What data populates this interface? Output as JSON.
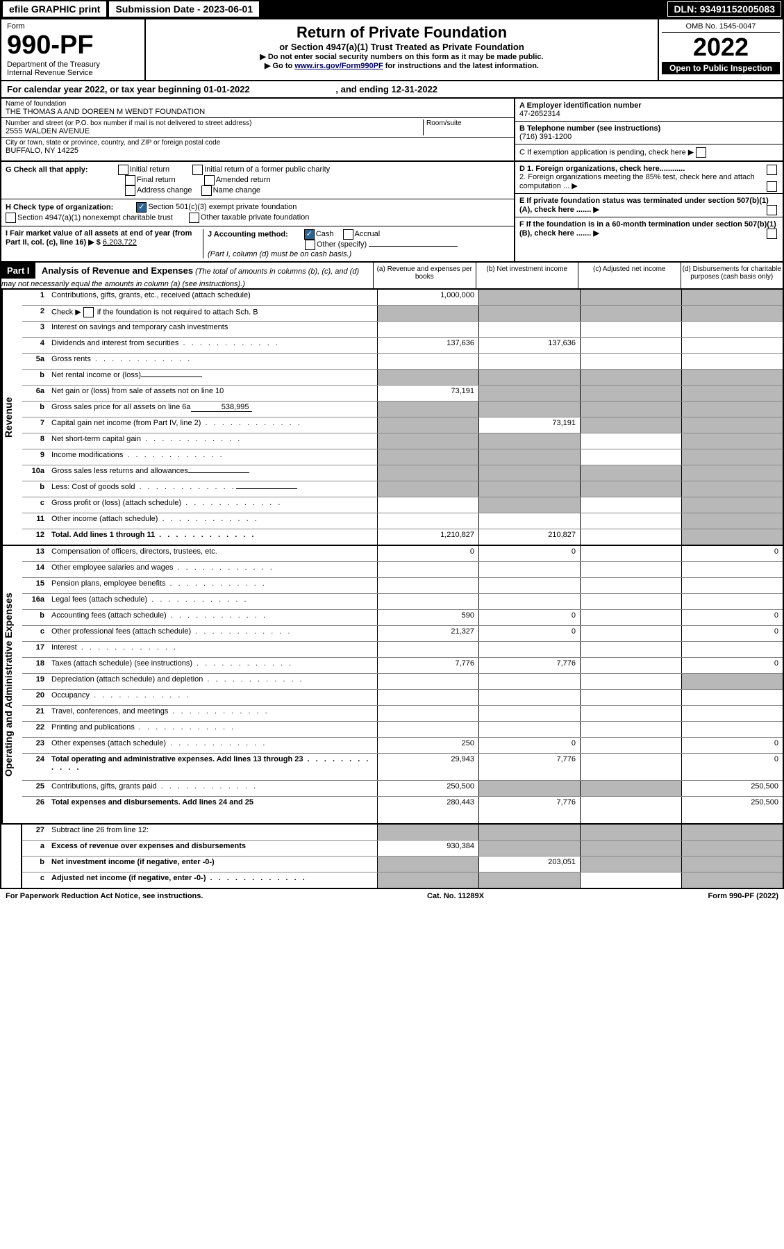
{
  "topbar": {
    "efile": "efile GRAPHIC print",
    "submission_label": "Submission Date - ",
    "submission_date": "2023-06-01",
    "dln_label": "DLN: ",
    "dln": "93491152005083"
  },
  "header": {
    "form_label": "Form",
    "form_number": "990-PF",
    "dept": "Department of the Treasury",
    "irs": "Internal Revenue Service",
    "title": "Return of Private Foundation",
    "subtitle": "or Section 4947(a)(1) Trust Treated as Private Foundation",
    "line1": "▶ Do not enter social security numbers on this form as it may be made public.",
    "line2_pre": "▶ Go to ",
    "line2_link": "www.irs.gov/Form990PF",
    "line2_post": " for instructions and the latest information.",
    "omb": "OMB No. 1545-0047",
    "year": "2022",
    "open": "Open to Public Inspection"
  },
  "calendar": {
    "text_pre": "For calendar year 2022, or tax year beginning ",
    "begin": "01-01-2022",
    "text_mid": " , and ending ",
    "end": "12-31-2022"
  },
  "info": {
    "name_lbl": "Name of foundation",
    "name": "THE THOMAS A AND DOREEN M WENDT FOUNDATION",
    "addr_lbl": "Number and street (or P.O. box number if mail is not delivered to street address)",
    "addr": "2555 WALDEN AVENUE",
    "room_lbl": "Room/suite",
    "room": "",
    "city_lbl": "City or town, state or province, country, and ZIP or foreign postal code",
    "city": "BUFFALO, NY  14225",
    "a_lbl": "A Employer identification number",
    "a_val": "47-2652314",
    "b_lbl": "B Telephone number (see instructions)",
    "b_val": "(716) 391-1200",
    "c_lbl": "C If exemption application is pending, check here ▶"
  },
  "checks": {
    "g_lbl": "G Check all that apply:",
    "g_opts": [
      "Initial return",
      "Initial return of a former public charity",
      "Final return",
      "Amended return",
      "Address change",
      "Name change"
    ],
    "h_lbl": "H Check type of organization:",
    "h1": "Section 501(c)(3) exempt private foundation",
    "h2": "Section 4947(a)(1) nonexempt charitable trust",
    "h3": "Other taxable private foundation",
    "i_lbl": "I Fair market value of all assets at end of year (from Part II, col. (c), line 16) ▶ $",
    "i_val": "6,203,722",
    "j_lbl": "J Accounting method:",
    "j_cash": "Cash",
    "j_accrual": "Accrual",
    "j_other": "Other (specify)",
    "j_note": "(Part I, column (d) must be on cash basis.)",
    "d1": "D 1. Foreign organizations, check here............",
    "d2": "2. Foreign organizations meeting the 85% test, check here and attach computation ...  ▶",
    "e": "E  If private foundation status was terminated under section 507(b)(1)(A), check here .......  ▶",
    "f": "F  If the foundation is in a 60-month termination under section 507(b)(1)(B), check here .......  ▶"
  },
  "part1": {
    "label": "Part I",
    "title": "Analysis of Revenue and Expenses",
    "note": " (The total of amounts in columns (b), (c), and (d) may not necessarily equal the amounts in column (a) (see instructions).)",
    "col_a": "(a)  Revenue and expenses per books",
    "col_b": "(b)  Net investment income",
    "col_c": "(c)  Adjusted net income",
    "col_d": "(d)  Disbursements for charitable purposes (cash basis only)"
  },
  "revenue_label": "Revenue",
  "expenses_label": "Operating and Administrative Expenses",
  "rows": {
    "r1": {
      "n": "1",
      "desc": "Contributions, gifts, grants, etc., received (attach schedule)",
      "a": "1,000,000",
      "b": "",
      "c": "",
      "d": "",
      "ga": false,
      "gb": true,
      "gc": true,
      "gd": true
    },
    "r2": {
      "n": "2",
      "desc_pre": "Check ▶ ",
      "desc_post": " if the foundation is not required to attach Sch. B",
      "a": "",
      "b": "",
      "c": "",
      "d": "",
      "ga": true,
      "gb": true,
      "gc": true,
      "gd": true,
      "chk": true,
      "dotted": true
    },
    "r3": {
      "n": "3",
      "desc": "Interest on savings and temporary cash investments",
      "a": "",
      "b": "",
      "c": "",
      "d": ""
    },
    "r4": {
      "n": "4",
      "desc": "Dividends and interest from securities",
      "a": "137,636",
      "b": "137,636",
      "c": "",
      "d": "",
      "dotted": true
    },
    "r5a": {
      "n": "5a",
      "desc": "Gross rents",
      "a": "",
      "b": "",
      "c": "",
      "d": "",
      "dotted": true
    },
    "r5b": {
      "n": "b",
      "desc": "Net rental income or (loss)",
      "a": "",
      "b": "",
      "c": "",
      "d": "",
      "ga": true,
      "gb": true,
      "gc": true,
      "gd": true,
      "inline": ""
    },
    "r6a": {
      "n": "6a",
      "desc": "Net gain or (loss) from sale of assets not on line 10",
      "a": "73,191",
      "b": "",
      "c": "",
      "d": "",
      "gb": true,
      "gc": true,
      "gd": true
    },
    "r6b": {
      "n": "b",
      "desc_pre": "Gross sales price for all assets on line 6a",
      "inline": "538,995",
      "a": "",
      "b": "",
      "c": "",
      "d": "",
      "ga": true,
      "gb": true,
      "gc": true,
      "gd": true
    },
    "r7": {
      "n": "7",
      "desc": "Capital gain net income (from Part IV, line 2)",
      "a": "",
      "b": "73,191",
      "c": "",
      "d": "",
      "ga": true,
      "gc": true,
      "gd": true,
      "dotted": true
    },
    "r8": {
      "n": "8",
      "desc": "Net short-term capital gain",
      "a": "",
      "b": "",
      "c": "",
      "d": "",
      "ga": true,
      "gb": true,
      "gd": true,
      "dotted": true
    },
    "r9": {
      "n": "9",
      "desc": "Income modifications",
      "a": "",
      "b": "",
      "c": "",
      "d": "",
      "ga": true,
      "gb": true,
      "gd": true,
      "dotted": true
    },
    "r10a": {
      "n": "10a",
      "desc": "Gross sales less returns and allowances",
      "inline": "",
      "a": "",
      "b": "",
      "c": "",
      "d": "",
      "ga": true,
      "gb": true,
      "gc": true,
      "gd": true
    },
    "r10b": {
      "n": "b",
      "desc": "Less: Cost of goods sold",
      "inline": "",
      "a": "",
      "b": "",
      "c": "",
      "d": "",
      "ga": true,
      "gb": true,
      "gc": true,
      "gd": true,
      "dotted": true
    },
    "r10c": {
      "n": "c",
      "desc": "Gross profit or (loss) (attach schedule)",
      "a": "",
      "b": "",
      "c": "",
      "d": "",
      "gb": true,
      "gd": true,
      "dotted": true
    },
    "r11": {
      "n": "11",
      "desc": "Other income (attach schedule)",
      "a": "",
      "b": "",
      "c": "",
      "d": "",
      "gd": true,
      "dotted": true
    },
    "r12": {
      "n": "12",
      "desc": "Total. Add lines 1 through 11",
      "a": "1,210,827",
      "b": "210,827",
      "c": "",
      "d": "",
      "gd": true,
      "bold": true,
      "dotted": true
    },
    "r13": {
      "n": "13",
      "desc": "Compensation of officers, directors, trustees, etc.",
      "a": "0",
      "b": "0",
      "c": "",
      "d": "0"
    },
    "r14": {
      "n": "14",
      "desc": "Other employee salaries and wages",
      "a": "",
      "b": "",
      "c": "",
      "d": "",
      "dotted": true
    },
    "r15": {
      "n": "15",
      "desc": "Pension plans, employee benefits",
      "a": "",
      "b": "",
      "c": "",
      "d": "",
      "dotted": true
    },
    "r16a": {
      "n": "16a",
      "desc": "Legal fees (attach schedule)",
      "a": "",
      "b": "",
      "c": "",
      "d": "",
      "dotted": true
    },
    "r16b": {
      "n": "b",
      "desc": "Accounting fees (attach schedule)",
      "a": "590",
      "b": "0",
      "c": "",
      "d": "0",
      "dotted": true
    },
    "r16c": {
      "n": "c",
      "desc": "Other professional fees (attach schedule)",
      "a": "21,327",
      "b": "0",
      "c": "",
      "d": "0",
      "dotted": true
    },
    "r17": {
      "n": "17",
      "desc": "Interest",
      "a": "",
      "b": "",
      "c": "",
      "d": "",
      "dotted": true
    },
    "r18": {
      "n": "18",
      "desc": "Taxes (attach schedule) (see instructions)",
      "a": "7,776",
      "b": "7,776",
      "c": "",
      "d": "0",
      "dotted": true
    },
    "r19": {
      "n": "19",
      "desc": "Depreciation (attach schedule) and depletion",
      "a": "",
      "b": "",
      "c": "",
      "d": "",
      "gd": true,
      "dotted": true
    },
    "r20": {
      "n": "20",
      "desc": "Occupancy",
      "a": "",
      "b": "",
      "c": "",
      "d": "",
      "dotted": true
    },
    "r21": {
      "n": "21",
      "desc": "Travel, conferences, and meetings",
      "a": "",
      "b": "",
      "c": "",
      "d": "",
      "dotted": true
    },
    "r22": {
      "n": "22",
      "desc": "Printing and publications",
      "a": "",
      "b": "",
      "c": "",
      "d": "",
      "dotted": true
    },
    "r23": {
      "n": "23",
      "desc": "Other expenses (attach schedule)",
      "a": "250",
      "b": "0",
      "c": "",
      "d": "0",
      "dotted": true
    },
    "r24": {
      "n": "24",
      "desc": "Total operating and administrative expenses. Add lines 13 through 23",
      "a": "29,943",
      "b": "7,776",
      "c": "",
      "d": "0",
      "bold": true,
      "dotted": true,
      "tall": true
    },
    "r25": {
      "n": "25",
      "desc": "Contributions, gifts, grants paid",
      "a": "250,500",
      "b": "",
      "c": "",
      "d": "250,500",
      "gb": true,
      "gc": true,
      "dotted": true
    },
    "r26": {
      "n": "26",
      "desc": "Total expenses and disbursements. Add lines 24 and 25",
      "a": "280,443",
      "b": "7,776",
      "c": "",
      "d": "250,500",
      "bold": true,
      "tall": true
    },
    "r27": {
      "n": "27",
      "desc": "Subtract line 26 from line 12:",
      "a": "",
      "b": "",
      "c": "",
      "d": "",
      "ga": true,
      "gb": true,
      "gc": true,
      "gd": true
    },
    "r27a": {
      "n": "a",
      "desc": "Excess of revenue over expenses and disbursements",
      "a": "930,384",
      "b": "",
      "c": "",
      "d": "",
      "gb": true,
      "gc": true,
      "gd": true,
      "bold": true
    },
    "r27b": {
      "n": "b",
      "desc": "Net investment income (if negative, enter -0-)",
      "a": "",
      "b": "203,051",
      "c": "",
      "d": "",
      "ga": true,
      "gc": true,
      "gd": true,
      "bold": true
    },
    "r27c": {
      "n": "c",
      "desc": "Adjusted net income (if negative, enter -0-)",
      "a": "",
      "b": "",
      "c": "",
      "d": "",
      "ga": true,
      "gb": true,
      "gd": true,
      "bold": true,
      "dotted": true
    }
  },
  "footer": {
    "left": "For Paperwork Reduction Act Notice, see instructions.",
    "mid": "Cat. No. 11289X",
    "right": "Form 990-PF (2022)"
  }
}
